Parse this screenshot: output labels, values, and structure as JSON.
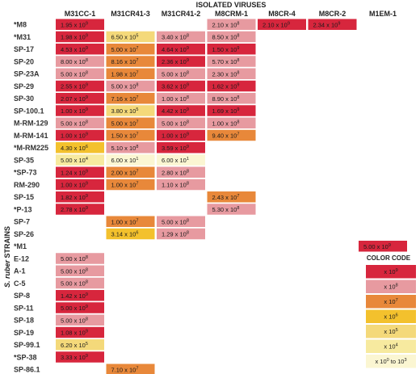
{
  "chart_data": {
    "type": "heatmap",
    "title": "ISOLATED VIRUSES",
    "ylabel": "S. ruber STRAINS",
    "columns": [
      "M31CC-1",
      "M31CR41-3",
      "M31CR41-2",
      "M8CRM-1",
      "M8CR-4",
      "M8CR-2",
      "M1EM-1"
    ],
    "rows": [
      {
        "strain": "*M8",
        "cells": [
          {
            "text": "1.95 x 10^9",
            "level": "9"
          },
          null,
          null,
          {
            "text": "2.10 x 10^8",
            "level": "8"
          },
          {
            "text": "2.10 x 10^9",
            "level": "9"
          },
          {
            "text": "2.34 x 10^9",
            "level": "9"
          },
          null
        ]
      },
      {
        "strain": "*M31",
        "cells": [
          {
            "text": "1.98 x 10^9",
            "level": "9"
          },
          {
            "text": "6.50 x 10^5",
            "level": "5"
          },
          {
            "text": "3.40 x 10^8",
            "level": "8"
          },
          {
            "text": "8.50 x 10^8",
            "level": "8"
          },
          null,
          null,
          null
        ]
      },
      {
        "strain": "SP-17",
        "cells": [
          {
            "text": "4.53 x 10^9",
            "level": "9"
          },
          {
            "text": "5.00 x 10^7",
            "level": "7"
          },
          {
            "text": "4.64 x 10^9",
            "level": "9"
          },
          {
            "text": "1.50 x 10^9",
            "level": "9"
          },
          null,
          null,
          null
        ]
      },
      {
        "strain": "SP-20",
        "cells": [
          {
            "text": "8.00 x 10^8",
            "level": "8"
          },
          {
            "text": "8.16 x 10^7",
            "level": "7"
          },
          {
            "text": "2.36 x 10^9",
            "level": "9"
          },
          {
            "text": "5.70 x 10^8",
            "level": "8"
          },
          null,
          null,
          null
        ]
      },
      {
        "strain": "SP-23A",
        "cells": [
          {
            "text": "5.00 x 10^8",
            "level": "8"
          },
          {
            "text": "1.98 x 10^7",
            "level": "7"
          },
          {
            "text": "5.00 x 10^8",
            "level": "8"
          },
          {
            "text": "2.30 x 10^8",
            "level": "8"
          },
          null,
          null,
          null
        ]
      },
      {
        "strain": "SP-29",
        "cells": [
          {
            "text": "2.55 x 10^9",
            "level": "9"
          },
          {
            "text": "5.00 x 10^8",
            "level": "8"
          },
          {
            "text": "3.62 x 10^9",
            "level": "9"
          },
          {
            "text": "1.62 x 10^9",
            "level": "9"
          },
          null,
          null,
          null
        ]
      },
      {
        "strain": "SP-30",
        "cells": [
          {
            "text": "2.07 x 10^9",
            "level": "9"
          },
          {
            "text": "7.16 x 10^7",
            "level": "7"
          },
          {
            "text": "1.00 x 10^8",
            "level": "8"
          },
          {
            "text": "8.90 x 10^8",
            "level": "8"
          },
          null,
          null,
          null
        ]
      },
      {
        "strain": "SP-100.1",
        "cells": [
          {
            "text": "1.00 x 10^9",
            "level": "9"
          },
          {
            "text": "3.80 x 10^5",
            "level": "5"
          },
          {
            "text": "4.42 x 10^9",
            "level": "9"
          },
          {
            "text": "1.69 x 10^9",
            "level": "9"
          },
          null,
          null,
          null
        ]
      },
      {
        "strain": "M-RM-129",
        "cells": [
          {
            "text": "5.00 x 10^8",
            "level": "8"
          },
          {
            "text": "5.00 x 10^7",
            "level": "7"
          },
          {
            "text": "5.00 x 10^8",
            "level": "8"
          },
          {
            "text": "1.00 x 10^8",
            "level": "8"
          },
          null,
          null,
          null
        ]
      },
      {
        "strain": "M-RM-141",
        "cells": [
          {
            "text": "1.00 x 10^9",
            "level": "9"
          },
          {
            "text": "1.50 x 10^7",
            "level": "7"
          },
          {
            "text": "1.00 x 10^9",
            "level": "9"
          },
          {
            "text": "9.40 x 10^7",
            "level": "7"
          },
          null,
          null,
          null
        ]
      },
      {
        "strain": "*M-RM225",
        "cells": [
          {
            "text": "4.30 x 10^6",
            "level": "6"
          },
          {
            "text": "5.10 x 10^8",
            "level": "8"
          },
          {
            "text": "3.59 x 10^9",
            "level": "9"
          },
          null,
          null,
          null,
          null
        ]
      },
      {
        "strain": "SP-35",
        "cells": [
          {
            "text": "5.00 x 10^4",
            "level": "4"
          },
          {
            "text": "6.00 x 10^1",
            "level": "low"
          },
          {
            "text": "6.00 x 10^1",
            "level": "low"
          },
          null,
          null,
          null,
          null
        ]
      },
      {
        "strain": "*SP-73",
        "cells": [
          {
            "text": "1.24 x 10^9",
            "level": "9"
          },
          {
            "text": "2.00 x 10^7",
            "level": "7"
          },
          {
            "text": "2.80 x 10^8",
            "level": "8"
          },
          null,
          null,
          null,
          null
        ]
      },
      {
        "strain": "RM-290",
        "cells": [
          {
            "text": "1.00 x 10^9",
            "level": "9"
          },
          {
            "text": "1.00 x 10^7",
            "level": "7"
          },
          {
            "text": "1.10 x 10^8",
            "level": "8"
          },
          null,
          null,
          null,
          null
        ]
      },
      {
        "strain": "SP-15",
        "cells": [
          {
            "text": "1.82 x 10^9",
            "level": "9"
          },
          null,
          null,
          {
            "text": "2.43 x 10^7",
            "level": "7"
          },
          null,
          null,
          null
        ]
      },
      {
        "strain": "*P-13",
        "cells": [
          {
            "text": "2.78 x 10^9",
            "level": "9"
          },
          null,
          null,
          {
            "text": "5.30 x 10^8",
            "level": "8"
          },
          null,
          null,
          null
        ]
      },
      {
        "strain": "SP-7",
        "cells": [
          null,
          {
            "text": "1.00 x 10^7",
            "level": "7"
          },
          {
            "text": "5.00 x 10^8",
            "level": "8"
          },
          null,
          null,
          null,
          null
        ]
      },
      {
        "strain": "SP-26",
        "cells": [
          null,
          {
            "text": "3.14 x 10^6",
            "level": "6"
          },
          {
            "text": "1.29 x 10^8",
            "level": "8"
          },
          null,
          null,
          null,
          null
        ]
      },
      {
        "strain": "*M1",
        "cells": [
          null,
          null,
          null,
          null,
          null,
          null,
          {
            "text": "5.00 x 10^9",
            "level": "9"
          }
        ]
      },
      {
        "strain": "E-12",
        "cells": [
          {
            "text": "5.00 x 10^8",
            "level": "8"
          },
          null,
          null,
          null,
          null,
          null,
          null
        ]
      },
      {
        "strain": "A-1",
        "cells": [
          {
            "text": "5.00 x 10^8",
            "level": "8"
          },
          null,
          null,
          null,
          null,
          null,
          null
        ]
      },
      {
        "strain": "C-5",
        "cells": [
          {
            "text": "5.00 x 10^8",
            "level": "8"
          },
          null,
          null,
          null,
          null,
          null,
          null
        ]
      },
      {
        "strain": "SP-8",
        "cells": [
          {
            "text": "1.42 x 10^9",
            "level": "9"
          },
          null,
          null,
          null,
          null,
          null,
          null
        ]
      },
      {
        "strain": "SP-11",
        "cells": [
          {
            "text": "5.00 x 10^9",
            "level": "9"
          },
          null,
          null,
          null,
          null,
          null,
          null
        ]
      },
      {
        "strain": "SP-18",
        "cells": [
          {
            "text": "5.00 x 10^8",
            "level": "8"
          },
          null,
          null,
          null,
          null,
          null,
          null
        ]
      },
      {
        "strain": "SP-19",
        "cells": [
          {
            "text": "1.08 x 10^9",
            "level": "9"
          },
          null,
          null,
          null,
          null,
          null,
          null
        ]
      },
      {
        "strain": "SP-99.1",
        "cells": [
          {
            "text": "6.20 x 10^5",
            "level": "5"
          },
          null,
          null,
          null,
          null,
          null,
          null
        ]
      },
      {
        "strain": "*SP-38",
        "cells": [
          {
            "text": "3.33 x 10^9",
            "level": "9"
          },
          null,
          null,
          null,
          null,
          null,
          null
        ]
      },
      {
        "strain": "SP-86.1",
        "cells": [
          null,
          {
            "text": "7.10 x 10^7",
            "level": "7"
          },
          null,
          null,
          null,
          null,
          null
        ]
      }
    ],
    "legend": {
      "title": "COLOR CODE",
      "items": [
        {
          "level": "9",
          "label": "x 10^9",
          "color": "#d7263d"
        },
        {
          "level": "8",
          "label": "x 10^8",
          "color": "#e79aa0"
        },
        {
          "level": "7",
          "label": "x 10^7",
          "color": "#e8883a"
        },
        {
          "level": "6",
          "label": "x 10^6",
          "color": "#f3c12d"
        },
        {
          "level": "5",
          "label": "x 10^5",
          "color": "#f4d97a"
        },
        {
          "level": "4",
          "label": "x 10^4",
          "color": "#f7ea9f"
        },
        {
          "level": "low",
          "label": "x 10^0 to 10^3",
          "color": "#fbf6d2"
        }
      ]
    }
  }
}
